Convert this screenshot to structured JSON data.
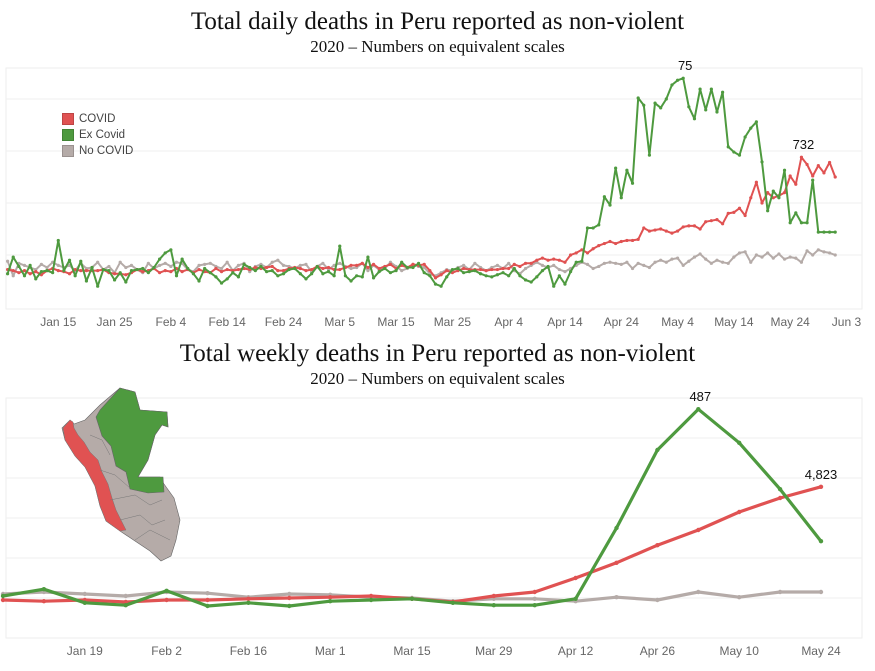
{
  "chart_data": [
    {
      "type": "line",
      "title": "Total daily deaths in Peru reported as non-violent",
      "subtitle": "2020 – Numbers on equivalent scales",
      "xlabel": "",
      "ylabel": "",
      "x_start": "Jan 6",
      "x_end": "Jun 1",
      "x_unit": "day",
      "ylim": [
        0,
        460
      ],
      "grid": true,
      "legend_position": "top-left",
      "tick_labels": [
        "Jan 15",
        "Jan 25",
        "Feb 4",
        "Feb 14",
        "Feb 24",
        "Mar 5",
        "Mar 15",
        "Mar 25",
        "Apr 4",
        "Apr 14",
        "Apr 24",
        "May 4",
        "May 14",
        "May 24",
        "Jun 3"
      ],
      "tick_day_index": [
        9,
        19,
        29,
        39,
        49,
        59,
        69,
        79,
        89,
        99,
        109,
        119,
        129,
        139,
        149
      ],
      "series": [
        {
          "name": "COVID",
          "color": "#e05252",
          "values": [
            72,
            70,
            66,
            70,
            64,
            68,
            62,
            70,
            74,
            70,
            68,
            64,
            72,
            70,
            70,
            70,
            70,
            72,
            66,
            64,
            64,
            62,
            66,
            72,
            68,
            70,
            74,
            66,
            70,
            68,
            74,
            68,
            72,
            66,
            72,
            68,
            66,
            74,
            68,
            72,
            70,
            72,
            74,
            72,
            76,
            74,
            76,
            78,
            70,
            70,
            74,
            76,
            74,
            70,
            72,
            78,
            74,
            76,
            72,
            72,
            76,
            80,
            80,
            84,
            76,
            82,
            74,
            78,
            82,
            74,
            80,
            76,
            82,
            80,
            82,
            70,
            56,
            62,
            70,
            66,
            70,
            74,
            72,
            72,
            72,
            70,
            72,
            72,
            74,
            74,
            82,
            78,
            84,
            84,
            90,
            94,
            90,
            92,
            90,
            86,
            100,
            104,
            110,
            104,
            112,
            118,
            122,
            126,
            122,
            126,
            128,
            128,
            130,
            152,
            146,
            148,
            150,
            146,
            142,
            146,
            154,
            156,
            156,
            150,
            164,
            166,
            168,
            160,
            180,
            182,
            190,
            176,
            210,
            240,
            200,
            220,
            210,
            214,
            220,
            252,
            236,
            288,
            274,
            252,
            272,
            258,
            278,
            250
          ]
        },
        {
          "name": "Ex Covid",
          "color": "#4e9a3f",
          "values": [
            64,
            96,
            78,
            60,
            80,
            54,
            68,
            70,
            66,
            128,
            70,
            90,
            60,
            88,
            50,
            76,
            40,
            72,
            70,
            52,
            66,
            48,
            70,
            72,
            74,
            66,
            76,
            92,
            104,
            110,
            60,
            92,
            74,
            64,
            50,
            74,
            66,
            58,
            46,
            54,
            66,
            58,
            82,
            76,
            70,
            78,
            68,
            70,
            60,
            64,
            72,
            74,
            64,
            54,
            64,
            78,
            64,
            68,
            60,
            117,
            60,
            50,
            60,
            58,
            96,
            56,
            68,
            74,
            66,
            70,
            86,
            76,
            76,
            84,
            66,
            60,
            44,
            40,
            58,
            72,
            74,
            66,
            68,
            70,
            64,
            60,
            58,
            62,
            66,
            60,
            74,
            60,
            52,
            48,
            58,
            70,
            78,
            40,
            60,
            44,
            68,
            86,
            88,
            152,
            152,
            158,
            212,
            196,
            267,
            210,
            263,
            238,
            402,
            388,
            292,
            392,
            383,
            400,
            427,
            436,
            440,
            385,
            362,
            419,
            379,
            419,
            375,
            413,
            308,
            298,
            292,
            327,
            344,
            356,
            279,
            185,
            223,
            210,
            263,
            162,
            181,
            162,
            162,
            244,
            144,
            144,
            144,
            144
          ]
        },
        {
          "name": "No COVID",
          "color": "#b5aba8",
          "values": [
            88,
            60,
            84,
            80,
            76,
            72,
            82,
            76,
            86,
            80,
            76,
            80,
            70,
            84,
            74,
            76,
            86,
            72,
            78,
            66,
            86,
            76,
            80,
            72,
            66,
            84,
            74,
            80,
            84,
            78,
            86,
            84,
            72,
            68,
            80,
            82,
            84,
            78,
            74,
            86,
            70,
            80,
            84,
            68,
            78,
            82,
            76,
            86,
            90,
            80,
            78,
            74,
            80,
            82,
            68,
            78,
            84,
            72,
            80,
            84,
            78,
            74,
            76,
            84,
            70,
            80,
            72,
            74,
            86,
            78,
            70,
            74,
            82,
            78,
            76,
            64,
            60,
            66,
            72,
            70,
            76,
            80,
            72,
            84,
            76,
            70,
            76,
            80,
            74,
            84,
            70,
            64,
            74,
            80,
            86,
            80,
            76,
            80,
            72,
            68,
            74,
            80,
            86,
            82,
            74,
            78,
            84,
            86,
            84,
            82,
            86,
            74,
            84,
            80,
            76,
            86,
            90,
            86,
            92,
            94,
            80,
            88,
            96,
            102,
            92,
            84,
            90,
            86,
            84,
            96,
            104,
            106,
            86,
            100,
            96,
            104,
            94,
            102,
            92,
            96,
            94,
            86,
            108,
            100,
            110,
            106,
            104,
            100
          ]
        }
      ],
      "annotations": [
        {
          "text": "75",
          "series": 1,
          "at": "max"
        },
        {
          "text": "732",
          "series": 0,
          "at": "max"
        }
      ]
    },
    {
      "type": "line",
      "title": "Total weekly deaths in Peru reported as non-violent",
      "subtitle": "2020 – Numbers on equivalent scales",
      "xlabel": "",
      "ylabel": "",
      "x": [
        "Jan 5",
        "Jan 12",
        "Jan 19",
        "Jan 26",
        "Feb 2",
        "Feb 9",
        "Feb 16",
        "Feb 23",
        "Mar 1",
        "Mar 8",
        "Mar 15",
        "Mar 22",
        "Mar 29",
        "Apr 5",
        "Apr 12",
        "Apr 19",
        "Apr 26",
        "May 3",
        "May 10",
        "May 17",
        "May 24"
      ],
      "tick_labels": [
        "Jan 19",
        "Feb 2",
        "Feb 16",
        "Mar 1",
        "Mar 15",
        "Mar 29",
        "Apr 12",
        "Apr 26",
        "May 10",
        "May 24"
      ],
      "tick_week_index": [
        2,
        4,
        6,
        8,
        10,
        12,
        14,
        16,
        18,
        20
      ],
      "ylim": [
        0,
        600
      ],
      "grid": true,
      "series": [
        {
          "name": "COVID",
          "color": "#e05252",
          "values": [
            95,
            92,
            95,
            90,
            95,
            95,
            98,
            100,
            102,
            105,
            98,
            90,
            105,
            115,
            150,
            188,
            232,
            270,
            315,
            350,
            378
          ]
        },
        {
          "name": "Ex Covid",
          "color": "#4e9a3f",
          "values": [
            105,
            122,
            88,
            82,
            118,
            80,
            88,
            80,
            92,
            95,
            98,
            88,
            82,
            82,
            98,
            275,
            470,
            572,
            488,
            372,
            242
          ]
        },
        {
          "name": "No COVID",
          "color": "#b5aba8",
          "values": [
            110,
            115,
            110,
            105,
            115,
            112,
            102,
            110,
            108,
            102,
            100,
            92,
            98,
            98,
            92,
            102,
            95,
            115,
            102,
            115,
            115
          ]
        }
      ],
      "annotations": [
        {
          "text": "487",
          "series": 1,
          "at": "max"
        },
        {
          "text": "4,823",
          "series": 0,
          "at": "last"
        }
      ]
    }
  ],
  "map": {
    "region_colors": {
      "covid": "#e05252",
      "ex_covid": "#4e9a3f",
      "no_covid": "#b5aba8"
    }
  }
}
